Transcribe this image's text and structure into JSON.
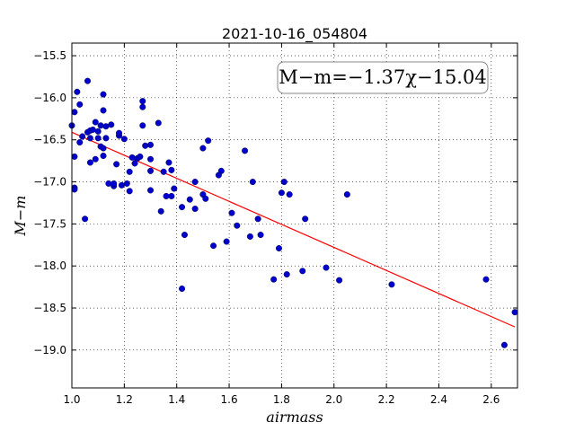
{
  "chart_data": {
    "type": "scatter",
    "title": "2021-10-16_054804",
    "xlabel": "airmass",
    "ylabel": "M−m",
    "xlim": [
      1.0,
      2.7
    ],
    "ylim": [
      -19.45,
      -15.35
    ],
    "y_inverted": true,
    "grid": true,
    "annotation": "M−m=−1.37χ−15.04",
    "xticks": [
      1.0,
      1.2,
      1.4,
      1.6,
      1.8,
      2.0,
      2.2,
      2.4,
      2.6
    ],
    "xtick_labels": [
      "1.0",
      "1.2",
      "1.4",
      "1.6",
      "1.8",
      "2.0",
      "2.2",
      "2.4",
      "2.6"
    ],
    "yticks": [
      -15.5,
      -16.0,
      -16.5,
      -17.0,
      -17.5,
      -18.0,
      -18.5,
      -19.0
    ],
    "ytick_labels": [
      "−15.5",
      "−16.0",
      "−16.5",
      "−17.0",
      "−17.5",
      "−18.0",
      "−18.5",
      "−19.0"
    ],
    "fit_line": {
      "slope": -1.37,
      "intercept": -15.04,
      "x_range": [
        1.0,
        2.69
      ],
      "color": "#ff0000"
    },
    "points_color": "#0000cc",
    "points": [
      [
        1.0,
        -16.33
      ],
      [
        1.01,
        -17.07
      ],
      [
        1.01,
        -17.09
      ],
      [
        1.01,
        -16.7
      ],
      [
        1.01,
        -16.17
      ],
      [
        1.02,
        -15.93
      ],
      [
        1.03,
        -16.08
      ],
      [
        1.03,
        -16.53
      ],
      [
        1.04,
        -16.46
      ],
      [
        1.05,
        -17.44
      ],
      [
        1.06,
        -15.8
      ],
      [
        1.06,
        -16.41
      ],
      [
        1.07,
        -16.39
      ],
      [
        1.07,
        -16.48
      ],
      [
        1.07,
        -16.77
      ],
      [
        1.08,
        -16.38
      ],
      [
        1.09,
        -16.73
      ],
      [
        1.09,
        -16.29
      ],
      [
        1.1,
        -16.48
      ],
      [
        1.1,
        -16.4
      ],
      [
        1.11,
        -16.33
      ],
      [
        1.11,
        -16.58
      ],
      [
        1.12,
        -16.6
      ],
      [
        1.12,
        -16.69
      ],
      [
        1.12,
        -15.96
      ],
      [
        1.12,
        -16.15
      ],
      [
        1.13,
        -16.48
      ],
      [
        1.13,
        -16.34
      ],
      [
        1.14,
        -17.02
      ],
      [
        1.15,
        -16.32
      ],
      [
        1.16,
        -17.05
      ],
      [
        1.16,
        -17.02
      ],
      [
        1.17,
        -16.79
      ],
      [
        1.18,
        -16.45
      ],
      [
        1.18,
        -16.42
      ],
      [
        1.19,
        -17.04
      ],
      [
        1.2,
        -16.49
      ],
      [
        1.21,
        -17.02
      ],
      [
        1.22,
        -17.11
      ],
      [
        1.22,
        -16.88
      ],
      [
        1.23,
        -16.71
      ],
      [
        1.24,
        -16.78
      ],
      [
        1.25,
        -16.72
      ],
      [
        1.26,
        -16.7
      ],
      [
        1.27,
        -16.33
      ],
      [
        1.27,
        -16.11
      ],
      [
        1.27,
        -16.04
      ],
      [
        1.28,
        -16.57
      ],
      [
        1.3,
        -16.56
      ],
      [
        1.3,
        -16.73
      ],
      [
        1.3,
        -16.87
      ],
      [
        1.3,
        -17.1
      ],
      [
        1.33,
        -16.3
      ],
      [
        1.34,
        -17.35
      ],
      [
        1.35,
        -16.88
      ],
      [
        1.36,
        -17.17
      ],
      [
        1.37,
        -16.77
      ],
      [
        1.38,
        -17.17
      ],
      [
        1.38,
        -16.86
      ],
      [
        1.39,
        -17.08
      ],
      [
        1.42,
        -17.3
      ],
      [
        1.42,
        -18.27
      ],
      [
        1.43,
        -17.63
      ],
      [
        1.45,
        -17.21
      ],
      [
        1.47,
        -17.32
      ],
      [
        1.47,
        -17.0
      ],
      [
        1.5,
        -16.6
      ],
      [
        1.5,
        -17.15
      ],
      [
        1.51,
        -17.2
      ],
      [
        1.52,
        -16.51
      ],
      [
        1.54,
        -17.76
      ],
      [
        1.56,
        -16.92
      ],
      [
        1.57,
        -16.87
      ],
      [
        1.59,
        -17.71
      ],
      [
        1.61,
        -17.37
      ],
      [
        1.63,
        -17.52
      ],
      [
        1.66,
        -16.63
      ],
      [
        1.68,
        -17.65
      ],
      [
        1.69,
        -17.0
      ],
      [
        1.71,
        -17.44
      ],
      [
        1.72,
        -17.63
      ],
      [
        1.77,
        -18.16
      ],
      [
        1.79,
        -17.79
      ],
      [
        1.8,
        -17.13
      ],
      [
        1.81,
        -17.0
      ],
      [
        1.82,
        -18.1
      ],
      [
        1.83,
        -17.15
      ],
      [
        1.88,
        -18.06
      ],
      [
        1.89,
        -17.44
      ],
      [
        1.97,
        -18.02
      ],
      [
        2.02,
        -18.17
      ],
      [
        2.05,
        -17.15
      ],
      [
        2.22,
        -18.22
      ],
      [
        2.58,
        -18.16
      ],
      [
        2.65,
        -18.94
      ],
      [
        2.69,
        -18.55
      ]
    ]
  }
}
